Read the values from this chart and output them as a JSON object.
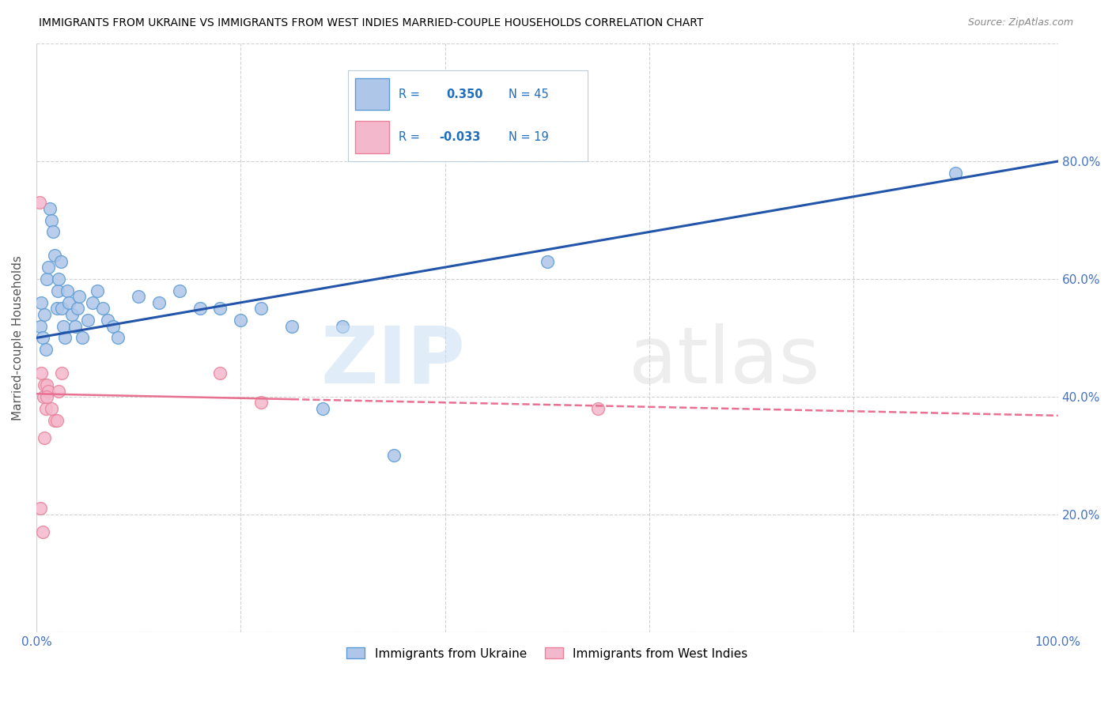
{
  "title": "IMMIGRANTS FROM UKRAINE VS IMMIGRANTS FROM WEST INDIES MARRIED-COUPLE HOUSEHOLDS CORRELATION CHART",
  "source": "Source: ZipAtlas.com",
  "ylabel": "Married-couple Households",
  "xlim": [
    0,
    1.0
  ],
  "ylim": [
    0,
    1.0
  ],
  "xticks": [
    0.0,
    0.2,
    0.4,
    0.6,
    0.8,
    1.0
  ],
  "yticks": [
    0.0,
    0.2,
    0.4,
    0.6,
    0.8,
    1.0
  ],
  "xticklabels": [
    "0.0%",
    "",
    "",
    "",
    "",
    "100.0%"
  ],
  "yticklabels_right": [
    "",
    "20.0%",
    "40.0%",
    "60.0%",
    "80.0%",
    ""
  ],
  "ukraine_color": "#aec6e8",
  "ukraine_edge": "#5b9bd5",
  "west_indies_color": "#f4b8cc",
  "west_indies_edge": "#e8829a",
  "ukraine_line_color": "#2255aa",
  "west_indies_line_color": "#e87090",
  "legend_r_color": "#1e6dbf",
  "ukraine_R": 0.35,
  "ukraine_N": 45,
  "west_indies_R": -0.033,
  "west_indies_N": 19,
  "ukraine_x": [
    0.004,
    0.005,
    0.006,
    0.008,
    0.009,
    0.01,
    0.012,
    0.013,
    0.015,
    0.016,
    0.018,
    0.02,
    0.021,
    0.022,
    0.024,
    0.025,
    0.026,
    0.028,
    0.03,
    0.032,
    0.035,
    0.038,
    0.04,
    0.042,
    0.045,
    0.05,
    0.055,
    0.06,
    0.065,
    0.07,
    0.075,
    0.08,
    0.1,
    0.12,
    0.14,
    0.16,
    0.18,
    0.2,
    0.22,
    0.25,
    0.28,
    0.3,
    0.35,
    0.5,
    0.9
  ],
  "ukraine_y": [
    0.52,
    0.56,
    0.5,
    0.54,
    0.48,
    0.6,
    0.62,
    0.72,
    0.7,
    0.68,
    0.64,
    0.55,
    0.58,
    0.6,
    0.63,
    0.55,
    0.52,
    0.5,
    0.58,
    0.56,
    0.54,
    0.52,
    0.55,
    0.57,
    0.5,
    0.53,
    0.56,
    0.58,
    0.55,
    0.53,
    0.52,
    0.5,
    0.57,
    0.56,
    0.58,
    0.55,
    0.55,
    0.53,
    0.55,
    0.52,
    0.38,
    0.52,
    0.3,
    0.63,
    0.78
  ],
  "west_indies_x": [
    0.003,
    0.005,
    0.007,
    0.008,
    0.009,
    0.01,
    0.012,
    0.015,
    0.018,
    0.02,
    0.022,
    0.025,
    0.18,
    0.22,
    0.004,
    0.006,
    0.008,
    0.01,
    0.55
  ],
  "west_indies_y": [
    0.73,
    0.44,
    0.4,
    0.42,
    0.38,
    0.42,
    0.41,
    0.38,
    0.36,
    0.36,
    0.41,
    0.44,
    0.44,
    0.39,
    0.21,
    0.17,
    0.33,
    0.4,
    0.38
  ],
  "ukraine_line_x0": 0.0,
  "ukraine_line_x1": 1.0,
  "ukraine_line_y0": 0.5,
  "ukraine_line_y1": 0.8,
  "wi_line_x0": 0.0,
  "wi_line_solid_x1": 0.25,
  "wi_line_x1": 1.0,
  "wi_line_y0": 0.405,
  "wi_line_y1": 0.368
}
